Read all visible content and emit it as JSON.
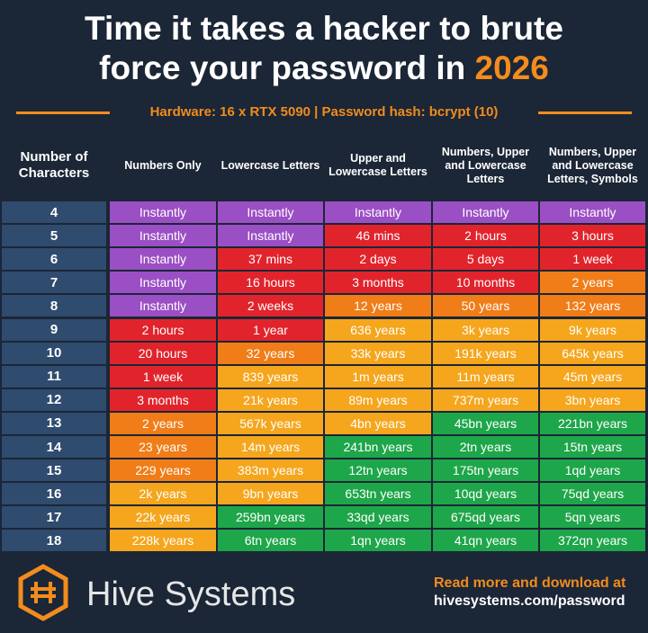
{
  "header": {
    "title": "Time it takes a hacker to brute force your password in",
    "title_highlight": "2026",
    "subtitle": "Hardware: 16 x RTX 5090 | Password hash: bcrypt (10)"
  },
  "table": {
    "columns": [
      "Number of Characters",
      "Numbers Only",
      "Lowercase Letters",
      "Upper and Lowercase Letters",
      "Numbers, Upper and Lowercase Letters",
      "Numbers, Upper and Lowercase Letters, Symbols"
    ],
    "rows": [
      [
        "4",
        {
          "text": "Instantly",
          "color": "#9b4fc4"
        },
        {
          "text": "Instantly",
          "color": "#9b4fc4"
        },
        {
          "text": "Instantly",
          "color": "#9b4fc4"
        },
        {
          "text": "Instantly",
          "color": "#9b4fc4"
        },
        {
          "text": "Instantly",
          "color": "#9b4fc4"
        }
      ],
      [
        "5",
        {
          "text": "Instantly",
          "color": "#9b4fc4"
        },
        {
          "text": "Instantly",
          "color": "#9b4fc4"
        },
        {
          "text": "46 mins",
          "color": "#e1242c"
        },
        {
          "text": "2 hours",
          "color": "#e1242c"
        },
        {
          "text": "3 hours",
          "color": "#e1242c"
        }
      ],
      [
        "6",
        {
          "text": "Instantly",
          "color": "#9b4fc4"
        },
        {
          "text": "37 mins",
          "color": "#e1242c"
        },
        {
          "text": "2 days",
          "color": "#e1242c"
        },
        {
          "text": "5 days",
          "color": "#e1242c"
        },
        {
          "text": "1 week",
          "color": "#e1242c"
        }
      ],
      [
        "7",
        {
          "text": "Instantly",
          "color": "#9b4fc4"
        },
        {
          "text": "16 hours",
          "color": "#e1242c"
        },
        {
          "text": "3 months",
          "color": "#e1242c"
        },
        {
          "text": "10 months",
          "color": "#e1242c"
        },
        {
          "text": "2 years",
          "color": "#f07d18"
        }
      ],
      [
        "8",
        {
          "text": "Instantly",
          "color": "#9b4fc4"
        },
        {
          "text": "2 weeks",
          "color": "#e1242c"
        },
        {
          "text": "12 years",
          "color": "#f07d18"
        },
        {
          "text": "50 years",
          "color": "#f07d18"
        },
        {
          "text": "132 years",
          "color": "#f07d18"
        }
      ],
      [
        "9",
        {
          "text": "2 hours",
          "color": "#e1242c"
        },
        {
          "text": "1 year",
          "color": "#e1242c"
        },
        {
          "text": "636 years",
          "color": "#f5a61d"
        },
        {
          "text": "3k years",
          "color": "#f5a61d"
        },
        {
          "text": "9k years",
          "color": "#f5a61d"
        }
      ],
      [
        "10",
        {
          "text": "20 hours",
          "color": "#e1242c"
        },
        {
          "text": "32 years",
          "color": "#f07d18"
        },
        {
          "text": "33k years",
          "color": "#f5a61d"
        },
        {
          "text": "191k years",
          "color": "#f5a61d"
        },
        {
          "text": "645k years",
          "color": "#f5a61d"
        }
      ],
      [
        "11",
        {
          "text": "1 week",
          "color": "#e1242c"
        },
        {
          "text": "839 years",
          "color": "#f5a61d"
        },
        {
          "text": "1m years",
          "color": "#f5a61d"
        },
        {
          "text": "11m years",
          "color": "#f5a61d"
        },
        {
          "text": "45m years",
          "color": "#f5a61d"
        }
      ],
      [
        "12",
        {
          "text": "3 months",
          "color": "#e1242c"
        },
        {
          "text": "21k years",
          "color": "#f5a61d"
        },
        {
          "text": "89m years",
          "color": "#f5a61d"
        },
        {
          "text": "737m years",
          "color": "#f5a61d"
        },
        {
          "text": "3bn years",
          "color": "#f5a61d"
        }
      ],
      [
        "13",
        {
          "text": "2 years",
          "color": "#f07d18"
        },
        {
          "text": "567k years",
          "color": "#f5a61d"
        },
        {
          "text": "4bn years",
          "color": "#f5a61d"
        },
        {
          "text": "45bn years",
          "color": "#1ea64a"
        },
        {
          "text": "221bn years",
          "color": "#1ea64a"
        }
      ],
      [
        "14",
        {
          "text": "23 years",
          "color": "#f07d18"
        },
        {
          "text": "14m years",
          "color": "#f5a61d"
        },
        {
          "text": "241bn years",
          "color": "#1ea64a"
        },
        {
          "text": "2tn years",
          "color": "#1ea64a"
        },
        {
          "text": "15tn years",
          "color": "#1ea64a"
        }
      ],
      [
        "15",
        {
          "text": "229 years",
          "color": "#f07d18"
        },
        {
          "text": "383m years",
          "color": "#f5a61d"
        },
        {
          "text": "12tn years",
          "color": "#1ea64a"
        },
        {
          "text": "175tn years",
          "color": "#1ea64a"
        },
        {
          "text": "1qd years",
          "color": "#1ea64a"
        }
      ],
      [
        "16",
        {
          "text": "2k years",
          "color": "#f5a61d"
        },
        {
          "text": "9bn years",
          "color": "#f5a61d"
        },
        {
          "text": "653tn years",
          "color": "#1ea64a"
        },
        {
          "text": "10qd years",
          "color": "#1ea64a"
        },
        {
          "text": "75qd years",
          "color": "#1ea64a"
        }
      ],
      [
        "17",
        {
          "text": "22k years",
          "color": "#f5a61d"
        },
        {
          "text": "259bn years",
          "color": "#1ea64a"
        },
        {
          "text": "33qd years",
          "color": "#1ea64a"
        },
        {
          "text": "675qd years",
          "color": "#1ea64a"
        },
        {
          "text": "5qn years",
          "color": "#1ea64a"
        }
      ],
      [
        "18",
        {
          "text": "228k years",
          "color": "#f5a61d"
        },
        {
          "text": "6tn years",
          "color": "#1ea64a"
        },
        {
          "text": "1qn years",
          "color": "#1ea64a"
        },
        {
          "text": "41qn years",
          "color": "#1ea64a"
        },
        {
          "text": "372qn years",
          "color": "#1ea64a"
        }
      ]
    ]
  },
  "footer": {
    "brand": "Hive Systems",
    "cta": "Read more and download at",
    "url": "hivesystems.com/password"
  }
}
